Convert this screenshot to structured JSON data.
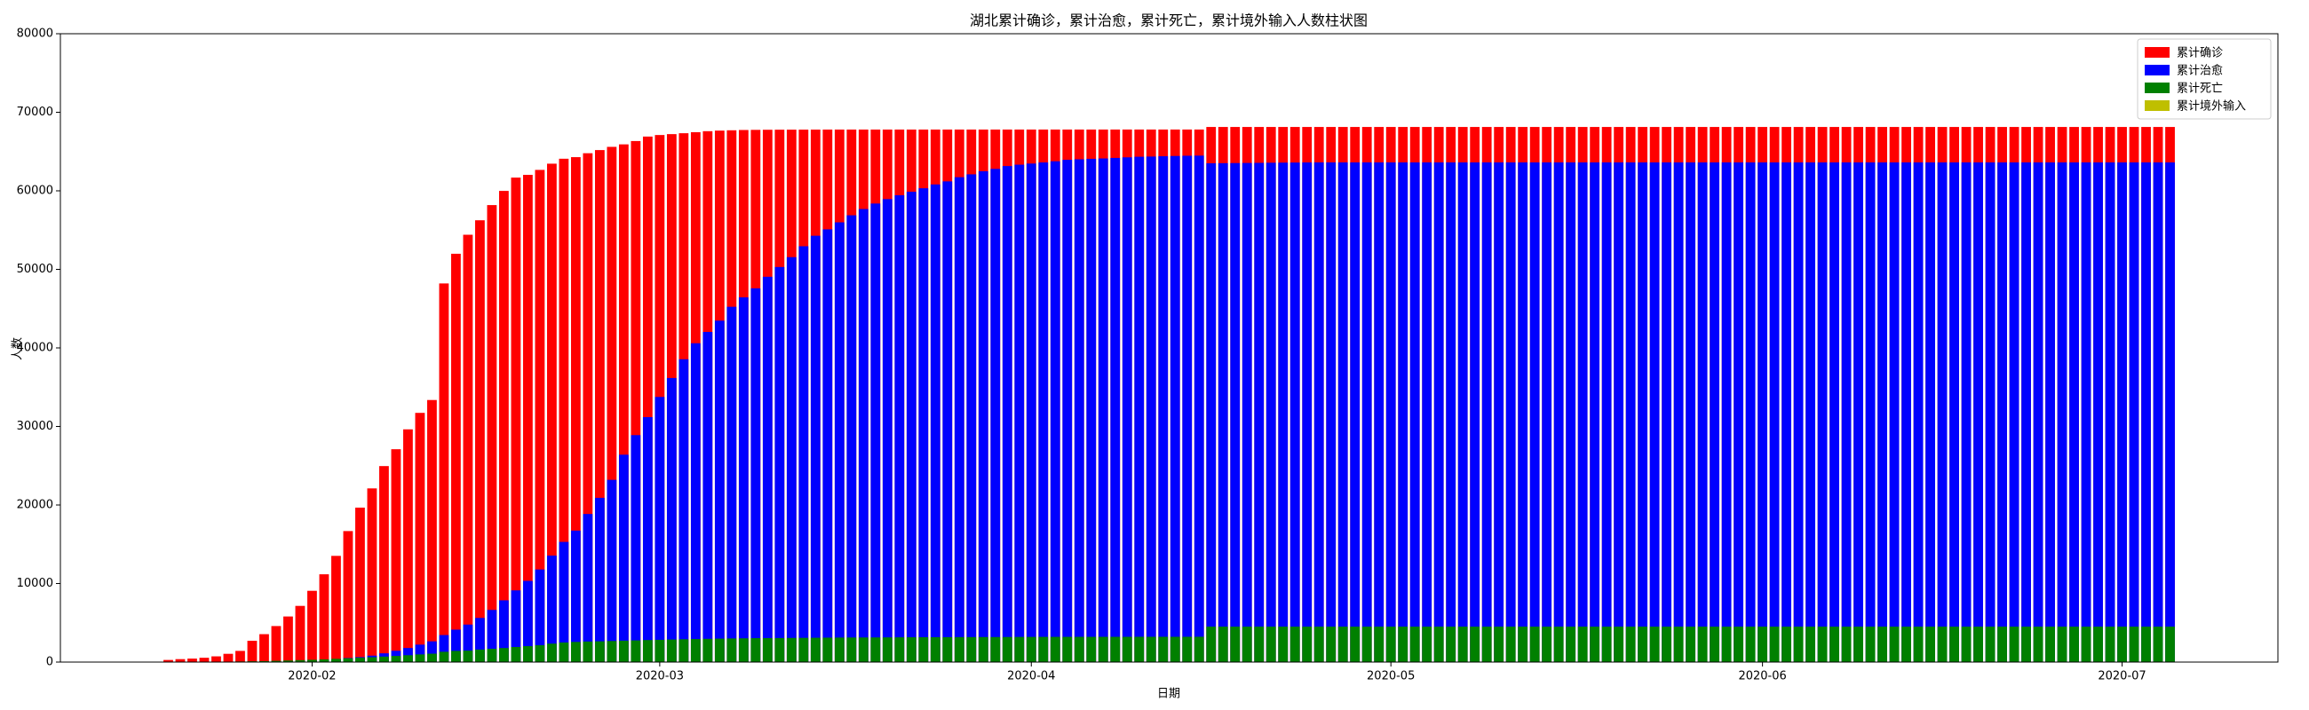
{
  "chart_data": {
    "type": "bar",
    "title": "湖北累计确诊，累计治愈，累计死亡，累计境外输入人数柱状图",
    "xlabel": "日期",
    "ylabel": "人数",
    "x": [
      "2020-01-20",
      "2020-01-21",
      "2020-01-22",
      "2020-01-23",
      "2020-01-24",
      "2020-01-25",
      "2020-01-26",
      "2020-01-27",
      "2020-01-28",
      "2020-01-29",
      "2020-01-30",
      "2020-01-31",
      "2020-02-01",
      "2020-02-02",
      "2020-02-03",
      "2020-02-04",
      "2020-02-05",
      "2020-02-06",
      "2020-02-07",
      "2020-02-08",
      "2020-02-09",
      "2020-02-10",
      "2020-02-11",
      "2020-02-12",
      "2020-02-13",
      "2020-02-14",
      "2020-02-15",
      "2020-02-16",
      "2020-02-17",
      "2020-02-18",
      "2020-02-19",
      "2020-02-20",
      "2020-02-21",
      "2020-02-22",
      "2020-02-23",
      "2020-02-24",
      "2020-02-25",
      "2020-02-26",
      "2020-02-27",
      "2020-02-28",
      "2020-02-29",
      "2020-03-01",
      "2020-03-02",
      "2020-03-03",
      "2020-03-04",
      "2020-03-05",
      "2020-03-06",
      "2020-03-07",
      "2020-03-08",
      "2020-03-09",
      "2020-03-10",
      "2020-03-11",
      "2020-03-12",
      "2020-03-13",
      "2020-03-14",
      "2020-03-15",
      "2020-03-16",
      "2020-03-17",
      "2020-03-18",
      "2020-03-19",
      "2020-03-20",
      "2020-03-21",
      "2020-03-22",
      "2020-03-23",
      "2020-03-24",
      "2020-03-25",
      "2020-03-26",
      "2020-03-27",
      "2020-03-28",
      "2020-03-29",
      "2020-03-30",
      "2020-03-31",
      "2020-04-01",
      "2020-04-02",
      "2020-04-03",
      "2020-04-04",
      "2020-04-05",
      "2020-04-06",
      "2020-04-07",
      "2020-04-08",
      "2020-04-09",
      "2020-04-10",
      "2020-04-11",
      "2020-04-12",
      "2020-04-13",
      "2020-04-14",
      "2020-04-15",
      "2020-04-16",
      "2020-04-17",
      "2020-04-18",
      "2020-04-19",
      "2020-04-20",
      "2020-04-21",
      "2020-04-22",
      "2020-04-23",
      "2020-04-24",
      "2020-04-25",
      "2020-04-26",
      "2020-04-27",
      "2020-04-28",
      "2020-04-29",
      "2020-04-30",
      "2020-05-01",
      "2020-05-02",
      "2020-05-03",
      "2020-05-04",
      "2020-05-05",
      "2020-05-06",
      "2020-05-07",
      "2020-05-08",
      "2020-05-09",
      "2020-05-10",
      "2020-05-11",
      "2020-05-12",
      "2020-05-13",
      "2020-05-14",
      "2020-05-15",
      "2020-05-16",
      "2020-05-17",
      "2020-05-18",
      "2020-05-19",
      "2020-05-20",
      "2020-05-21",
      "2020-05-22",
      "2020-05-23",
      "2020-05-24",
      "2020-05-25",
      "2020-05-26",
      "2020-05-27",
      "2020-05-28",
      "2020-05-29",
      "2020-05-30",
      "2020-05-31",
      "2020-06-01",
      "2020-06-02",
      "2020-06-03",
      "2020-06-04",
      "2020-06-05",
      "2020-06-06",
      "2020-06-07",
      "2020-06-08",
      "2020-06-09",
      "2020-06-10",
      "2020-06-11",
      "2020-06-12",
      "2020-06-13",
      "2020-06-14",
      "2020-06-15",
      "2020-06-16",
      "2020-06-17",
      "2020-06-18",
      "2020-06-19",
      "2020-06-20",
      "2020-06-21",
      "2020-06-22",
      "2020-06-23",
      "2020-06-24",
      "2020-06-25",
      "2020-06-26",
      "2020-06-27",
      "2020-06-28",
      "2020-06-29",
      "2020-06-30",
      "2020-07-01",
      "2020-07-02",
      "2020-07-03",
      "2020-07-04",
      "2020-07-05"
    ],
    "series": [
      {
        "name": "累计确诊",
        "color": "#ff0000",
        "values": [
          270,
          375,
          444,
          549,
          729,
          1052,
          1423,
          2714,
          3554,
          4586,
          5806,
          7153,
          9074,
          11177,
          13522,
          16678,
          19665,
          22112,
          24953,
          27100,
          29631,
          31728,
          33366,
          48206,
          51986,
          54406,
          56249,
          58182,
          59989,
          61682,
          62031,
          62662,
          63454,
          64084,
          64287,
          64786,
          65187,
          65596,
          65914,
          66337,
          66907,
          67103,
          67217,
          67332,
          67466,
          67592,
          67666,
          67707,
          67743,
          67760,
          67773,
          67781,
          67786,
          67790,
          67794,
          67798,
          67799,
          67800,
          67800,
          67800,
          67800,
          67800,
          67800,
          67800,
          67801,
          67801,
          67801,
          67801,
          67801,
          67801,
          67801,
          67801,
          67802,
          67802,
          67802,
          67802,
          67802,
          67802,
          67802,
          67803,
          67803,
          67803,
          67803,
          67803,
          67803,
          67803,
          67803,
          68128,
          68128,
          68128,
          68128,
          68128,
          68128,
          68128,
          68128,
          68128,
          68128,
          68128,
          68128,
          68128,
          68128,
          68128,
          68128,
          68128,
          68128,
          68128,
          68128,
          68128,
          68128,
          68128,
          68128,
          68128,
          68128,
          68128,
          68128,
          68128,
          68128,
          68128,
          68128,
          68128,
          68128,
          68128,
          68128,
          68128,
          68128,
          68128,
          68128,
          68128,
          68128,
          68128,
          68128,
          68128,
          68128,
          68128,
          68128,
          68128,
          68128,
          68128,
          68128,
          68128,
          68128,
          68128,
          68128,
          68128,
          68128,
          68128,
          68128,
          68128,
          68128,
          68128,
          68128,
          68128,
          68128,
          68128,
          68128,
          68128,
          68128,
          68128,
          68128,
          68128,
          68128,
          68128,
          68128,
          68128,
          68128,
          68128,
          68128,
          68128
        ]
      },
      {
        "name": "累计治愈",
        "color": "#0000ff",
        "values": [
          25,
          25,
          28,
          31,
          32,
          42,
          44,
          47,
          80,
          90,
          116,
          166,
          215,
          295,
          396,
          520,
          633,
          817,
          1115,
          1439,
          1795,
          2222,
          2639,
          3441,
          4131,
          4774,
          5623,
          6639,
          7862,
          9128,
          10337,
          11788,
          13557,
          15299,
          16738,
          18854,
          20912,
          23200,
          26403,
          28895,
          31187,
          33757,
          36167,
          38556,
          40592,
          42033,
          43468,
          45235,
          46433,
          47585,
          49056,
          50298,
          51553,
          52943,
          54278,
          55094,
          55987,
          56883,
          57682,
          58381,
          58946,
          59433,
          59879,
          60324,
          60811,
          61201,
          61732,
          62098,
          62494,
          62793,
          63153,
          63326,
          63471,
          63612,
          63762,
          63945,
          64014,
          64073,
          64119,
          64187,
          64264,
          64338,
          64363,
          64402,
          64435,
          64466,
          64481,
          63507,
          63520,
          63535,
          63548,
          63562,
          63575,
          63588,
          63600,
          63610,
          63616,
          63616,
          63616,
          63616,
          63616,
          63616,
          63616,
          63616,
          63616,
          63616,
          63616,
          63616,
          63616,
          63616,
          63616,
          63616,
          63616,
          63616,
          63616,
          63616,
          63616,
          63616,
          63616,
          63616,
          63616,
          63616,
          63616,
          63616,
          63616,
          63616,
          63616,
          63616,
          63616,
          63616,
          63616,
          63616,
          63616,
          63616,
          63616,
          63616,
          63616,
          63616,
          63616,
          63616,
          63616,
          63616,
          63616,
          63616,
          63616,
          63616,
          63616,
          63616,
          63616,
          63616,
          63616,
          63616,
          63616,
          63616,
          63616,
          63616,
          63616,
          63616,
          63616,
          63616,
          63616,
          63616,
          63616,
          63616,
          63616,
          63616,
          63616,
          63616
        ]
      },
      {
        "name": "累计死亡",
        "color": "#008000",
        "values": [
          6,
          9,
          17,
          24,
          39,
          52,
          76,
          100,
          125,
          162,
          204,
          249,
          294,
          350,
          414,
          479,
          549,
          618,
          699,
          780,
          871,
          974,
          1068,
          1310,
          1426,
          1457,
          1596,
          1696,
          1789,
          1921,
          2029,
          2144,
          2346,
          2495,
          2563,
          2615,
          2641,
          2682,
          2727,
          2761,
          2803,
          2834,
          2871,
          2902,
          2931,
          2959,
          2986,
          3007,
          3024,
          3046,
          3056,
          3062,
          3075,
          3085,
          3099,
          3111,
          3122,
          3130,
          3132,
          3139,
          3144,
          3153,
          3160,
          3163,
          3169,
          3174,
          3177,
          3182,
          3186,
          3187,
          3193,
          3199,
          3203,
          3207,
          3210,
          3212,
          3212,
          3212,
          3213,
          3215,
          3216,
          3219,
          3219,
          3219,
          3219,
          3221,
          3222,
          4512,
          4512,
          4512,
          4512,
          4512,
          4512,
          4512,
          4512,
          4512,
          4512,
          4512,
          4512,
          4512,
          4512,
          4512,
          4512,
          4512,
          4512,
          4512,
          4512,
          4512,
          4512,
          4512,
          4512,
          4512,
          4512,
          4512,
          4512,
          4512,
          4512,
          4512,
          4512,
          4512,
          4512,
          4512,
          4512,
          4512,
          4512,
          4512,
          4512,
          4512,
          4512,
          4512,
          4512,
          4512,
          4512,
          4512,
          4512,
          4512,
          4512,
          4512,
          4512,
          4512,
          4512,
          4512,
          4512,
          4512,
          4512,
          4512,
          4512,
          4512,
          4512,
          4512,
          4512,
          4512,
          4512,
          4512,
          4512,
          4512,
          4512,
          4512,
          4512,
          4512,
          4512,
          4512,
          4512,
          4512,
          4512,
          4512,
          4512,
          4512
        ]
      },
      {
        "name": "累计境外输入",
        "color": "#bfbf00",
        "values": [
          0,
          0,
          0,
          0,
          0,
          0,
          0,
          0,
          0,
          0,
          0,
          0,
          0,
          0,
          0,
          0,
          0,
          0,
          0,
          0,
          0,
          0,
          0,
          0,
          0,
          0,
          0,
          0,
          0,
          0,
          0,
          0,
          0,
          0,
          0,
          0,
          0,
          0,
          0,
          0,
          0,
          0,
          0,
          0,
          0,
          0,
          0,
          0,
          0,
          0,
          0,
          0,
          0,
          0,
          0,
          0,
          0,
          0,
          0,
          0,
          0,
          0,
          0,
          0,
          0,
          0,
          0,
          0,
          0,
          0,
          0,
          0,
          0,
          0,
          0,
          0,
          0,
          0,
          0,
          0,
          0,
          0,
          0,
          0,
          0,
          0,
          0,
          0,
          0,
          0,
          0,
          0,
          0,
          0,
          0,
          0,
          0,
          0,
          0,
          0,
          0,
          0,
          0,
          0,
          0,
          0,
          0,
          0,
          0,
          0,
          0,
          0,
          0,
          0,
          0,
          0,
          0,
          0,
          0,
          0,
          0,
          0,
          0,
          0,
          0,
          0,
          0,
          0,
          0,
          0,
          0,
          0,
          0,
          0,
          0,
          0,
          0,
          0,
          0,
          0,
          0,
          0,
          0,
          0,
          0,
          0,
          0,
          0,
          0,
          0,
          0,
          0,
          0,
          0,
          0,
          0,
          0,
          0,
          0,
          0,
          0,
          0,
          0,
          0,
          0,
          0,
          0,
          0
        ]
      }
    ],
    "xlim": [
      "2020-01-11",
      "2020-07-14"
    ],
    "xticks": [
      {
        "value": "2020-02-01",
        "label": "2020-02"
      },
      {
        "value": "2020-03-01",
        "label": "2020-03"
      },
      {
        "value": "2020-04-01",
        "label": "2020-04"
      },
      {
        "value": "2020-05-01",
        "label": "2020-05"
      },
      {
        "value": "2020-06-01",
        "label": "2020-06"
      },
      {
        "value": "2020-07-01",
        "label": "2020-07"
      }
    ],
    "ylim": [
      0,
      80000
    ],
    "yticks": [
      0,
      10000,
      20000,
      30000,
      40000,
      50000,
      60000,
      70000,
      80000
    ],
    "grid": false,
    "legend": "upper right"
  }
}
